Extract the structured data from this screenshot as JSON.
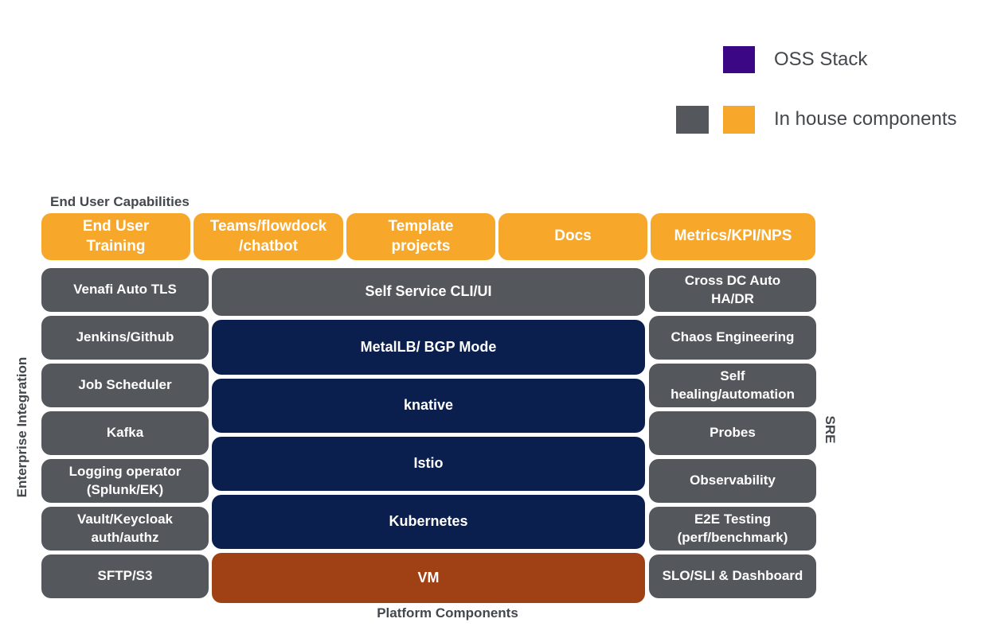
{
  "colors": {
    "oss_purple": "#3B0784",
    "oss_navy": "#0A1F4E",
    "inhouse_gray": "#54575C",
    "inhouse_orange": "#F7A82B",
    "vm_brown": "#A04015",
    "heading_text": "#44474C",
    "block_text": "#FFFFFF",
    "background": "#FFFFFF"
  },
  "legend": {
    "oss_label": "OSS Stack",
    "inhouse_label": "In house components"
  },
  "section_labels": {
    "end_user_capabilities": "End User Capabilities",
    "platform_components": "Platform Components",
    "enterprise_integration": "Enterprise Integration",
    "sre": "SRE"
  },
  "end_user_row": {
    "blocks": [
      {
        "label": "End User\nTraining",
        "type": "in-house"
      },
      {
        "label": "Teams/flowdock\n/chatbot",
        "type": "in-house"
      },
      {
        "label": "Template\nprojects",
        "type": "in-house"
      },
      {
        "label": "Docs",
        "type": "in-house"
      },
      {
        "label": "Metrics/KPI/NPS",
        "type": "in-house"
      }
    ]
  },
  "enterprise_column": {
    "blocks": [
      {
        "label": "Venafi Auto TLS",
        "type": "in-house"
      },
      {
        "label": "Jenkins/Github",
        "type": "in-house"
      },
      {
        "label": "Job Scheduler",
        "type": "in-house"
      },
      {
        "label": "Kafka",
        "type": "in-house"
      },
      {
        "label": "Logging operator\n(Splunk/EK)",
        "type": "in-house"
      },
      {
        "label": "Vault/Keycloak\nauth/authz",
        "type": "in-house"
      },
      {
        "label": "SFTP/S3",
        "type": "in-house"
      }
    ]
  },
  "platform_column": {
    "blocks": [
      {
        "label": "Self Service CLI/UI",
        "type": "in-house"
      },
      {
        "label": "MetalLB/ BGP Mode",
        "type": "oss"
      },
      {
        "label": "knative",
        "type": "oss"
      },
      {
        "label": "Istio",
        "type": "oss"
      },
      {
        "label": "Kubernetes",
        "type": "oss"
      },
      {
        "label": "VM",
        "type": "vm"
      }
    ]
  },
  "sre_column": {
    "blocks": [
      {
        "label": "Cross DC Auto\nHA/DR",
        "type": "in-house"
      },
      {
        "label": "Chaos Engineering",
        "type": "in-house"
      },
      {
        "label": "Self\nhealing/automation",
        "type": "in-house"
      },
      {
        "label": "Probes",
        "type": "in-house"
      },
      {
        "label": "Observability",
        "type": "in-house"
      },
      {
        "label": "E2E Testing\n(perf/benchmark)",
        "type": "in-house"
      },
      {
        "label": "SLO/SLI & Dashboard",
        "type": "in-house"
      }
    ]
  }
}
